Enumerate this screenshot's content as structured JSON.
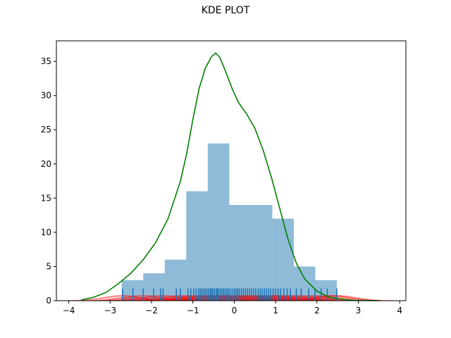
{
  "chart_data": {
    "type": "histogram",
    "title": "KDE PLOT",
    "xlabel": "",
    "ylabel": "",
    "xlim": [
      -4.3,
      4.15
    ],
    "ylim": [
      0,
      38
    ],
    "x_ticks": [
      -4,
      -3,
      -2,
      -1,
      0,
      1,
      2,
      3,
      4
    ],
    "y_ticks": [
      0,
      5,
      10,
      15,
      20,
      25,
      30,
      35
    ],
    "grid": false,
    "legend": "none",
    "histogram": {
      "color": "#1f77b4",
      "alpha": 0.5,
      "bin_edges": [
        -2.72,
        -2.2,
        -1.68,
        -1.16,
        -0.64,
        -0.12,
        0.4,
        0.92,
        1.44,
        1.96,
        2.48
      ],
      "counts": [
        3,
        4,
        6,
        16,
        23,
        14,
        14,
        12,
        5,
        3
      ]
    },
    "kde_curve": {
      "color": "#008000",
      "x": [
        -3.7,
        -3.4,
        -3.1,
        -2.8,
        -2.5,
        -2.2,
        -1.9,
        -1.6,
        -1.3,
        -1.15,
        -1.0,
        -0.85,
        -0.7,
        -0.55,
        -0.45,
        -0.35,
        -0.2,
        -0.05,
        0.1,
        0.3,
        0.5,
        0.7,
        0.9,
        1.1,
        1.3,
        1.5,
        1.7,
        2.0,
        2.3,
        2.6,
        2.9,
        3.2,
        3.5
      ],
      "y": [
        0.1,
        0.5,
        1.2,
        2.5,
        4.0,
        6.0,
        8.5,
        12.0,
        17.5,
        21.5,
        26.5,
        31.0,
        34.0,
        35.7,
        36.2,
        35.6,
        33.4,
        31.0,
        29.0,
        27.3,
        25.2,
        22.0,
        18.0,
        13.5,
        9.0,
        5.5,
        3.2,
        1.4,
        0.5,
        0.2,
        0.05,
        0.02,
        0.0
      ]
    },
    "rug": {
      "color": "#1f77b4",
      "height": 1.8,
      "x": [
        -2.7,
        -2.45,
        -2.2,
        -1.95,
        -1.78,
        -1.72,
        -1.4,
        -1.3,
        -1.12,
        -1.05,
        -0.98,
        -0.92,
        -0.86,
        -0.82,
        -0.78,
        -0.74,
        -0.7,
        -0.66,
        -0.62,
        -0.58,
        -0.55,
        -0.52,
        -0.48,
        -0.44,
        -0.41,
        -0.38,
        -0.34,
        -0.3,
        -0.26,
        -0.22,
        -0.18,
        -0.14,
        -0.1,
        -0.05,
        0.0,
        0.04,
        0.08,
        0.12,
        0.17,
        0.22,
        0.27,
        0.32,
        0.37,
        0.42,
        0.47,
        0.52,
        0.58,
        0.63,
        0.68,
        0.73,
        0.78,
        0.83,
        0.88,
        0.94,
        1.0,
        1.06,
        1.12,
        1.2,
        1.28,
        1.36,
        1.5,
        1.62,
        1.8,
        1.95,
        2.1,
        2.25,
        2.48
      ]
    },
    "kernel_bumps": {
      "color": "#ff0000",
      "alpha": 0.25,
      "bandwidth": 0.45,
      "peak": 0.75,
      "centers": [
        -2.7,
        -2.2,
        -1.75,
        -1.3,
        -1.0,
        -0.8,
        -0.6,
        -0.45,
        -0.3,
        -0.15,
        0.0,
        0.2,
        0.4,
        0.6,
        0.8,
        1.0,
        1.2,
        1.5,
        1.9,
        2.3,
        2.48
      ]
    }
  }
}
